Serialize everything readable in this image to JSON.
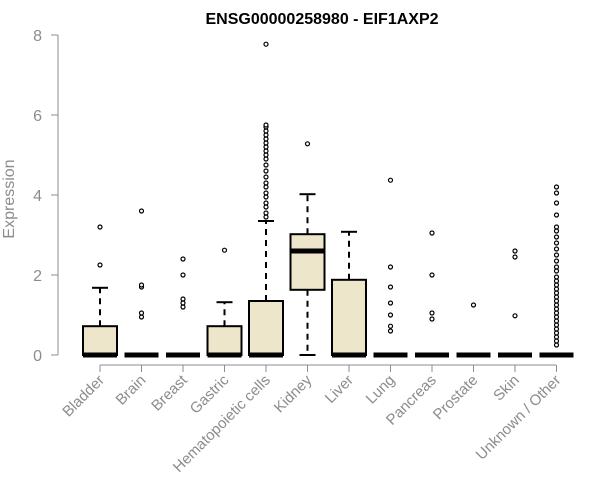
{
  "chart_data": {
    "type": "boxplot",
    "title": "ENSG00000258980 - EIF1AXP2",
    "xlabel": "",
    "ylabel": "Expression",
    "ylim": [
      0,
      8
    ],
    "yticks": [
      "0",
      "2",
      "4",
      "6",
      "8"
    ],
    "grid": false,
    "legend": "none",
    "colors": {
      "box_fill": "#ede6cb",
      "box_stroke": "#000000",
      "axis": "#8c8c8c"
    },
    "categories": [
      "Bladder",
      "Brain",
      "Breast",
      "Gastric",
      "Hematopoietic cells",
      "Kidney",
      "Liver",
      "Lung",
      "Pancreas",
      "Prostate",
      "Skin",
      "Unknown / Other"
    ],
    "boxes": [
      {
        "q1": 0,
        "median": 0,
        "q3": 0.72,
        "whisker_low": 0,
        "whisker_high": 1.68,
        "outliers": [
          2.25,
          3.2
        ]
      },
      {
        "q1": 0,
        "median": 0,
        "q3": 0,
        "whisker_low": 0,
        "whisker_high": 0,
        "outliers": [
          0.95,
          1.05,
          1.7,
          1.75,
          3.6
        ]
      },
      {
        "q1": 0,
        "median": 0,
        "q3": 0,
        "whisker_low": 0,
        "whisker_high": 0,
        "outliers": [
          1.2,
          1.3,
          1.4,
          2.0,
          2.4
        ]
      },
      {
        "q1": 0,
        "median": 0,
        "q3": 0.72,
        "whisker_low": 0,
        "whisker_high": 1.32,
        "outliers": [
          2.62
        ]
      },
      {
        "q1": 0,
        "median": 0,
        "q3": 1.35,
        "whisker_low": 0,
        "whisker_high": 3.35,
        "outliers": [
          3.45,
          3.55,
          3.7,
          3.8,
          3.95,
          4.05,
          4.2,
          4.3,
          4.45,
          4.6,
          4.75,
          4.9,
          5.0,
          5.1,
          5.2,
          5.3,
          5.4,
          5.5,
          5.6,
          5.7,
          5.75,
          7.77
        ]
      },
      {
        "q1": 1.63,
        "median": 2.6,
        "q3": 3.02,
        "whisker_low": 0,
        "whisker_high": 4.02,
        "outliers": [
          5.28
        ]
      },
      {
        "q1": 0,
        "median": 0,
        "q3": 1.88,
        "whisker_low": 0,
        "whisker_high": 3.08,
        "outliers": []
      },
      {
        "q1": 0,
        "median": 0,
        "q3": 0,
        "whisker_low": 0,
        "whisker_high": 0,
        "outliers": [
          0.6,
          0.72,
          1.0,
          1.3,
          1.7,
          2.2,
          4.37
        ]
      },
      {
        "q1": 0,
        "median": 0,
        "q3": 0,
        "whisker_low": 0,
        "whisker_high": 0,
        "outliers": [
          0.9,
          1.05,
          2.0,
          3.05
        ]
      },
      {
        "q1": 0,
        "median": 0,
        "q3": 0,
        "whisker_low": 0,
        "whisker_high": 0,
        "outliers": [
          1.25
        ]
      },
      {
        "q1": 0,
        "median": 0,
        "q3": 0,
        "whisker_low": 0,
        "whisker_high": 0,
        "outliers": [
          0.98,
          2.45,
          2.6
        ]
      },
      {
        "q1": 0,
        "median": 0,
        "q3": 0,
        "whisker_low": 0,
        "whisker_high": 0,
        "outliers": [
          0.25,
          0.35,
          0.45,
          0.55,
          0.65,
          0.75,
          0.85,
          0.95,
          1.05,
          1.15,
          1.25,
          1.35,
          1.45,
          1.55,
          1.65,
          1.75,
          1.85,
          1.95,
          2.1,
          2.2,
          2.35,
          2.5,
          2.65,
          2.8,
          2.95,
          3.1,
          3.2,
          3.5,
          3.8,
          4.05,
          4.2
        ]
      }
    ]
  }
}
